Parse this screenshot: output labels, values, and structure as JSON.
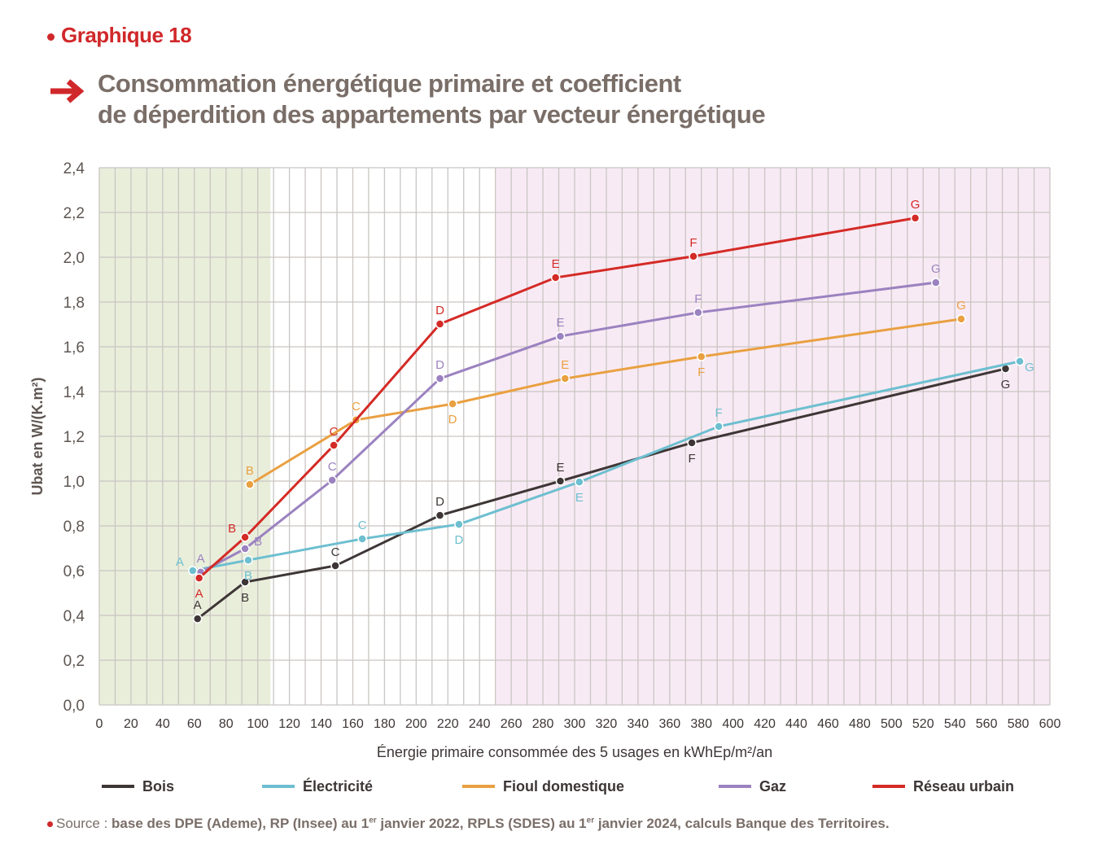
{
  "header": {
    "tag": "Graphique 18",
    "title_line1": "Consommation énergétique primaire et coefficient",
    "title_line2": "de déperdition des appartements par vecteur énergétique"
  },
  "source": {
    "label": "Source :",
    "text1": "base des DPE (Ademe), RP (Insee) au 1",
    "sup1": "er",
    "text2": " janvier 2022, RPLS (SDES) au 1",
    "sup2": "er",
    "text3": " janvier 2024, calculs Banque des Territoires."
  },
  "colors": {
    "accent": "#d0282a",
    "title": "#7a6e68",
    "zone_green": "#e9eedb",
    "zone_pink": "#f8eaf4",
    "grid": "#c9c5c2"
  },
  "chart_data": {
    "type": "line",
    "xlabel": "Énergie primaire consommée des 5 usages en kWhEp/m²/an",
    "ylabel": "Ubat en W/(K.m²)",
    "xlim": [
      0,
      600
    ],
    "ylim": [
      0,
      2.4
    ],
    "x_ticks": [
      0,
      20,
      40,
      60,
      80,
      100,
      120,
      140,
      160,
      180,
      200,
      220,
      240,
      260,
      280,
      300,
      320,
      340,
      360,
      380,
      400,
      420,
      440,
      460,
      480,
      500,
      520,
      540,
      560,
      580,
      600
    ],
    "y_ticks": [
      "0,0",
      "0,2",
      "0,4",
      "0,6",
      "0,8",
      "1,0",
      "1,2",
      "1,4",
      "1,6",
      "1,8",
      "2,0",
      "2,2",
      "2,4"
    ],
    "grid": true,
    "zones": [
      {
        "from": 0,
        "to": 108,
        "color": "#e9eedb"
      },
      {
        "from": 250,
        "to": 600,
        "color": "#f8eaf4"
      }
    ],
    "legend_position": "bottom",
    "series": [
      {
        "name": "Bois",
        "color": "#3e3636",
        "labels": [
          "A",
          "B",
          "C",
          "D",
          "E",
          "F",
          "G"
        ],
        "x": [
          62,
          92,
          149,
          215,
          291,
          374,
          572
        ],
        "y": [
          0.385,
          0.549,
          0.622,
          0.847,
          1.0,
          1.171,
          1.502
        ],
        "label_pos": [
          "above",
          "below",
          "above",
          "above",
          "above",
          "below",
          "below"
        ]
      },
      {
        "name": "Électricité",
        "color": "#6dbfd0",
        "labels": [
          "A",
          "B",
          "C",
          "D",
          "E",
          "F",
          "G"
        ],
        "x": [
          59,
          94,
          166,
          227,
          303,
          391,
          581
        ],
        "y": [
          0.6,
          0.647,
          0.742,
          0.807,
          0.996,
          1.244,
          1.535
        ],
        "label_pos": [
          "left",
          "below",
          "above",
          "below",
          "below",
          "above",
          "right-below"
        ]
      },
      {
        "name": "Fioul domestique",
        "color": "#e9a041",
        "labels": [
          "B",
          "C",
          "D",
          "E",
          "F",
          "G"
        ],
        "x": [
          95,
          162,
          223,
          294,
          380,
          544
        ],
        "y": [
          0.985,
          1.273,
          1.345,
          1.458,
          1.556,
          1.724
        ],
        "label_pos": [
          "above",
          "above",
          "below",
          "above",
          "below",
          "above"
        ]
      },
      {
        "name": "Gaz",
        "color": "#9b82c0",
        "labels": [
          "A",
          "B",
          "C",
          "D",
          "E",
          "F",
          "G"
        ],
        "x": [
          64,
          92,
          147,
          215,
          291,
          378,
          528
        ],
        "y": [
          0.593,
          0.698,
          1.004,
          1.458,
          1.647,
          1.753,
          1.887
        ],
        "label_pos": [
          "above",
          "right",
          "above",
          "above",
          "above",
          "above",
          "above"
        ]
      },
      {
        "name": "Réseau urbain",
        "color": "#d42a26",
        "labels": [
          "A",
          "B",
          "C",
          "D",
          "E",
          "F",
          "G"
        ],
        "x": [
          63,
          92,
          148,
          215,
          288,
          375,
          515
        ],
        "y": [
          0.567,
          0.749,
          1.16,
          1.702,
          1.909,
          2.004,
          2.175
        ],
        "label_pos": [
          "below",
          "left",
          "above",
          "above",
          "above",
          "above",
          "above"
        ]
      }
    ]
  }
}
